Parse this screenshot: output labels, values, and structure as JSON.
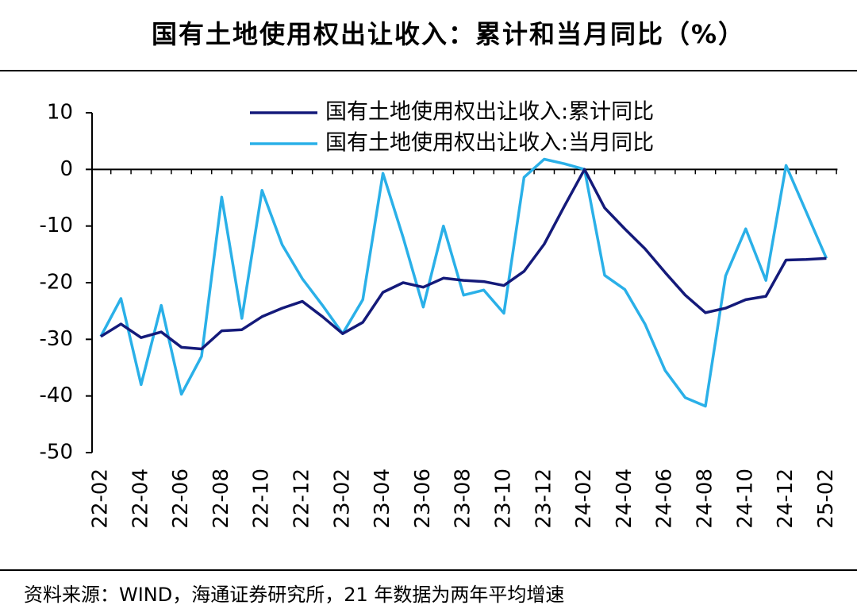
{
  "chart_data": {
    "type": "line",
    "title": "国有土地使用权出让收入：累计和当月同比（%）",
    "source": "资料来源：WIND，海通证券研究所，21 年数据为两年平均增速",
    "categories": [
      "22-02",
      null,
      "22-04",
      null,
      "22-06",
      null,
      "22-08",
      null,
      "22-10",
      null,
      "22-12",
      null,
      "23-02",
      null,
      "23-04",
      null,
      "23-06",
      null,
      "23-08",
      null,
      "23-10",
      null,
      "23-12",
      null,
      "24-02",
      null,
      "24-04",
      null,
      "24-06",
      null,
      "24-08",
      null,
      "24-10",
      null,
      "24-12",
      null,
      "25-02"
    ],
    "series": [
      {
        "name": "国有土地使用权出让收入:累计同比",
        "color": "#141a7a",
        "values": [
          -29.5,
          -27.3,
          -29.7,
          -28.7,
          -31.4,
          -31.7,
          -28.5,
          -28.3,
          -26,
          -24.5,
          -23.3,
          -26,
          -29,
          -27,
          -21.7,
          -20,
          -20.8,
          -19.2,
          -19.6,
          -19.8,
          -20.5,
          -18,
          -13.2,
          -6.5,
          0,
          -6.8,
          -10.5,
          -14,
          -18.2,
          -22.2,
          -25.3,
          -24.5,
          -23,
          -22.4,
          -16,
          -15.9,
          -15.7
        ]
      },
      {
        "name": "国有土地使用权出让收入:当月同比",
        "color": "#2ab0e8",
        "values": [
          -29.5,
          -22.8,
          -38,
          -24,
          -39.7,
          -33,
          -4.9,
          -26.3,
          -3.7,
          -13.3,
          -19.3,
          -24,
          -29,
          -23,
          -0.7,
          -12,
          -24.3,
          -10,
          -22.2,
          -21.3,
          -25.4,
          -1.4,
          1.8,
          1,
          0,
          -18.7,
          -21.2,
          -27.3,
          -35.5,
          -40.3,
          -41.8,
          -18.8,
          -10.5,
          -19.6,
          0.7,
          -7.5,
          -15.7
        ]
      }
    ],
    "ylim": [
      -50,
      10
    ],
    "yticks": [
      10,
      0,
      -10,
      -20,
      -30,
      -40,
      -50
    ],
    "legend": "top-right"
  }
}
